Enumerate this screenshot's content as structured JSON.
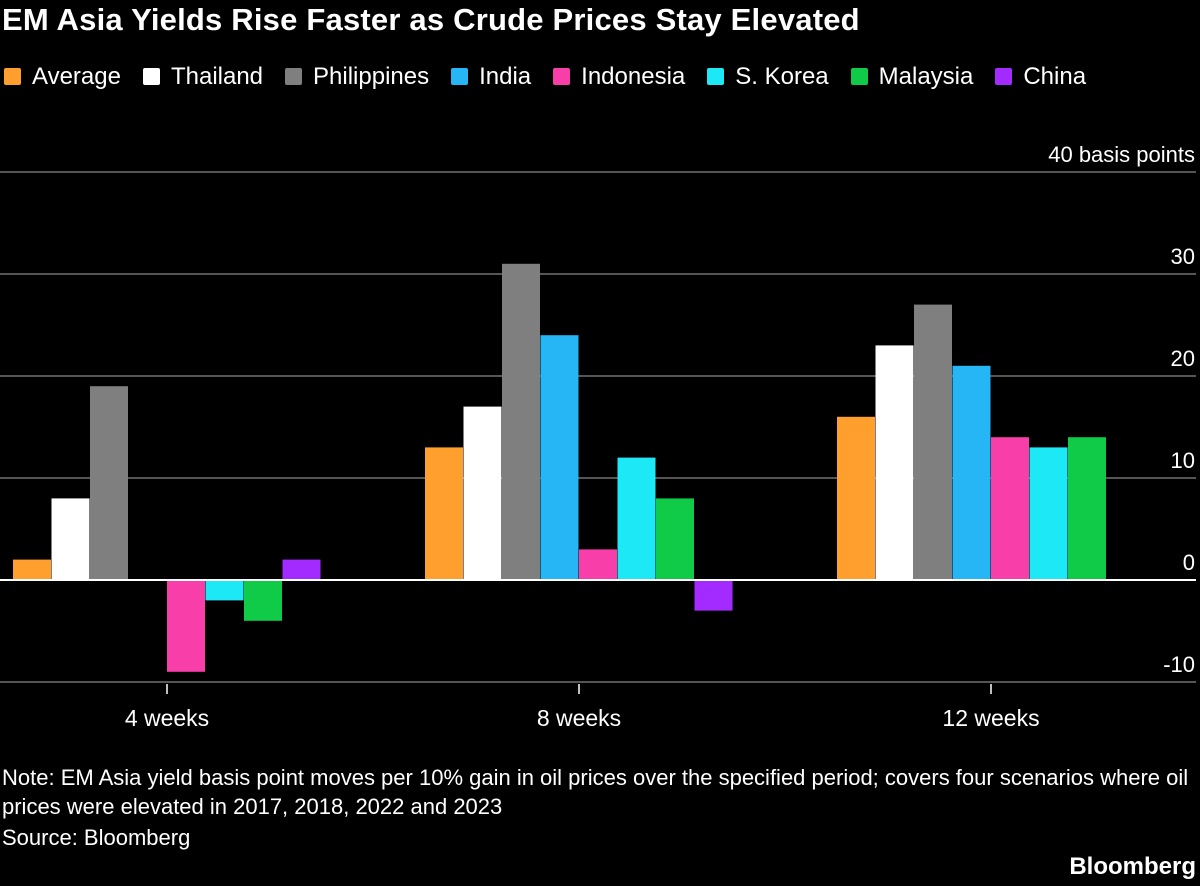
{
  "chart_data": {
    "type": "bar",
    "title": "EM Asia Yields Rise Faster as Crude Prices Stay Elevated",
    "ylabel": "basis points",
    "ylim": [
      -10,
      40
    ],
    "yticks": [
      -10,
      0,
      10,
      20,
      30,
      40
    ],
    "ytick_labels": [
      "-10",
      "0",
      "10",
      "20",
      "30",
      "40 basis points"
    ],
    "grid": true,
    "legend_position": "top-left",
    "categories": [
      "4 weeks",
      "8 weeks",
      "12 weeks"
    ],
    "series": [
      {
        "name": "Average",
        "color": "#ff9f2e",
        "values": [
          2,
          13,
          16
        ]
      },
      {
        "name": "Thailand",
        "color": "#ffffff",
        "values": [
          8,
          17,
          23
        ]
      },
      {
        "name": "Philippines",
        "color": "#7f7f7f",
        "values": [
          19,
          31,
          27
        ]
      },
      {
        "name": "India",
        "color": "#26b6f5",
        "values": [
          null,
          24,
          21
        ]
      },
      {
        "name": "Indonesia",
        "color": "#f83ea9",
        "values": [
          -9,
          3,
          14
        ]
      },
      {
        "name": "S. Korea",
        "color": "#1de8f5",
        "values": [
          -2,
          12,
          13
        ]
      },
      {
        "name": "Malaysia",
        "color": "#0fcb48",
        "values": [
          -4,
          8,
          14
        ]
      },
      {
        "name": "China",
        "color": "#a32bff",
        "values": [
          2,
          -3,
          null
        ]
      }
    ]
  },
  "note": "Note: EM Asia yield basis point moves per 10% gain in oil prices over the specified period; covers four scenarios where oil prices were elevated in 2017, 2018, 2022 and 2023",
  "source": "Source: Bloomberg",
  "logo": "Bloomberg"
}
